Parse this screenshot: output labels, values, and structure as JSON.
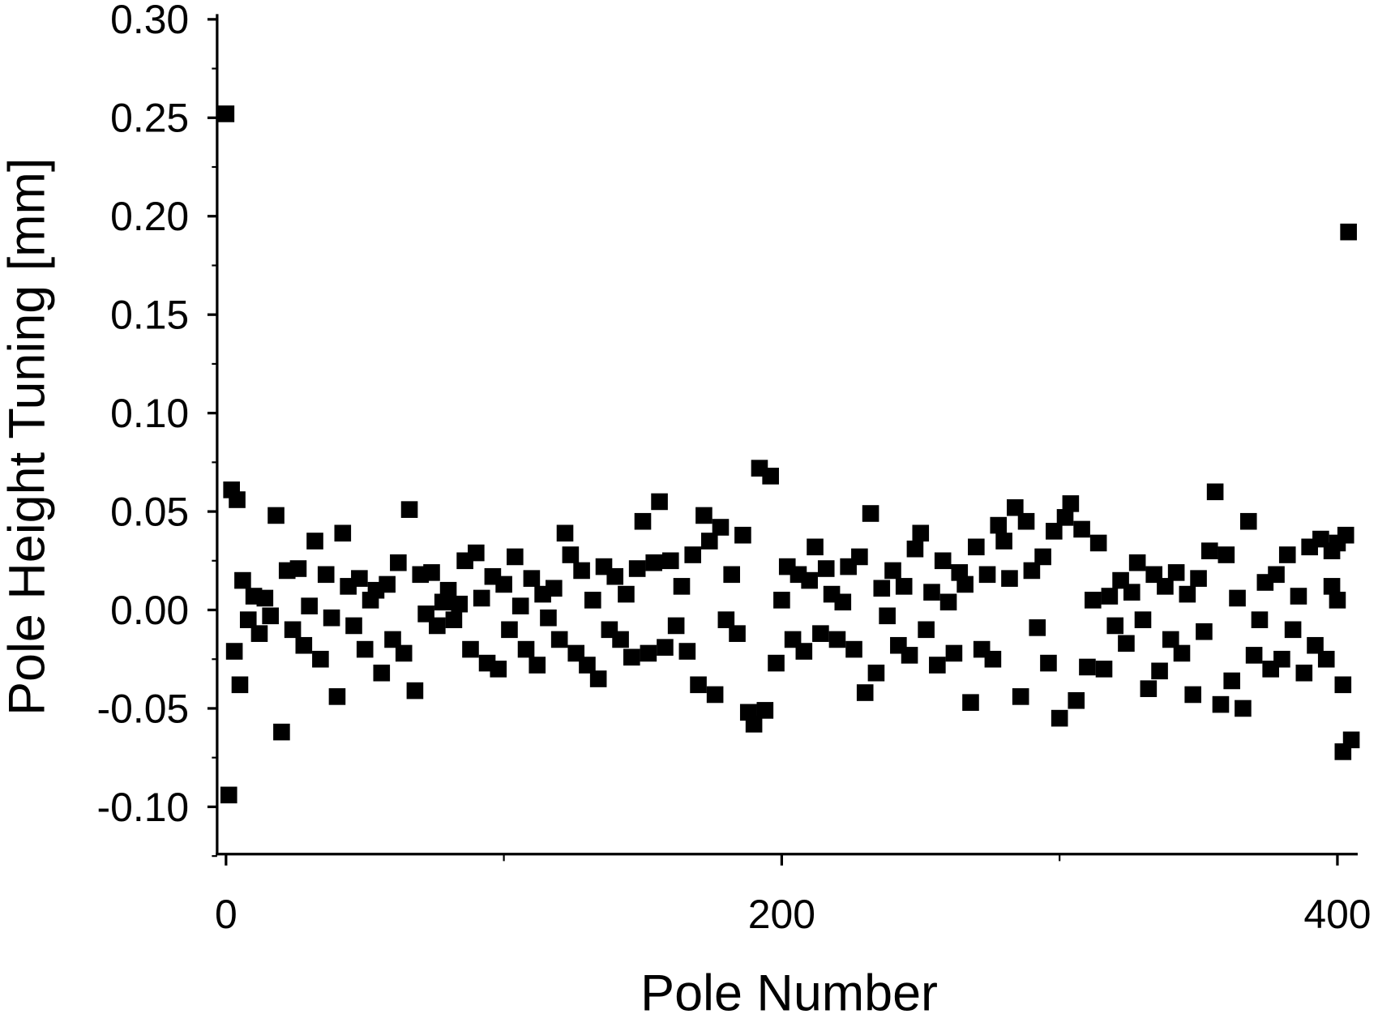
{
  "chart_data": {
    "type": "scatter",
    "xlabel": "Pole Number",
    "ylabel": "Pole Height Tuning [mm]",
    "xlim": [
      -3.2,
      407.3
    ],
    "ylim": [
      -0.124,
      0.302
    ],
    "xticks": [
      0,
      200,
      400
    ],
    "xminorticks": [
      100,
      300
    ],
    "yticks": [
      {
        "value": -0.1,
        "label": "-0.10"
      },
      -0.05,
      {
        "value": 0,
        "label": "0.00"
      },
      0.05,
      {
        "value": 0.1,
        "label": "0.10"
      },
      0.15,
      {
        "value": 0.2,
        "label": "0.20"
      },
      0.25,
      {
        "value": 0.3,
        "label": "0.30"
      }
    ],
    "yminorticks": [
      -0.125,
      -0.075,
      -0.025,
      0.025,
      0.075,
      0.125,
      0.175,
      0.225,
      0.275
    ],
    "color": "#000000",
    "x": [
      0,
      1,
      2,
      3,
      4,
      5,
      6,
      8,
      10,
      12,
      14,
      16,
      18,
      20,
      22,
      24,
      26,
      28,
      30,
      32,
      34,
      36,
      38,
      40,
      42,
      44,
      46,
      48,
      50,
      52,
      54,
      56,
      58,
      60,
      62,
      64,
      66,
      68,
      70,
      72,
      74,
      76,
      78,
      80,
      82,
      84,
      86,
      88,
      90,
      92,
      94,
      96,
      98,
      100,
      102,
      104,
      106,
      108,
      110,
      112,
      114,
      116,
      118,
      120,
      122,
      124,
      126,
      128,
      130,
      132,
      134,
      136,
      138,
      140,
      142,
      144,
      146,
      148,
      150,
      152,
      154,
      156,
      158,
      160,
      162,
      164,
      166,
      168,
      170,
      172,
      174,
      176,
      178,
      180,
      182,
      184,
      186,
      188,
      190,
      192,
      194,
      196,
      198,
      200,
      202,
      204,
      206,
      208,
      210,
      212,
      214,
      216,
      218,
      220,
      222,
      224,
      226,
      228,
      230,
      232,
      234,
      236,
      238,
      240,
      242,
      244,
      246,
      248,
      250,
      252,
      254,
      256,
      258,
      260,
      262,
      264,
      266,
      268,
      270,
      272,
      274,
      276,
      278,
      280,
      282,
      284,
      286,
      288,
      290,
      292,
      294,
      296,
      298,
      300,
      302,
      304,
      306,
      308,
      310,
      312,
      314,
      316,
      318,
      320,
      322,
      324,
      326,
      328,
      330,
      332,
      334,
      336,
      338,
      340,
      342,
      344,
      346,
      348,
      350,
      352,
      354,
      356,
      358,
      360,
      362,
      364,
      366,
      368,
      370,
      372,
      374,
      376,
      378,
      380,
      382,
      384,
      386,
      388,
      390,
      392,
      394,
      396,
      398,
      400,
      402,
      404,
      400,
      398,
      402,
      403,
      405
    ],
    "values": [
      0.252,
      -0.094,
      0.061,
      -0.021,
      0.056,
      -0.038,
      0.015,
      -0.005,
      0.007,
      -0.012,
      0.006,
      -0.003,
      0.048,
      -0.062,
      0.02,
      -0.01,
      0.021,
      -0.018,
      0.002,
      0.035,
      -0.025,
      0.018,
      -0.004,
      -0.044,
      0.039,
      0.012,
      -0.008,
      0.016,
      -0.02,
      0.005,
      0.01,
      -0.032,
      0.013,
      -0.015,
      0.024,
      -0.022,
      0.051,
      -0.041,
      0.018,
      -0.002,
      0.019,
      -0.008,
      0.004,
      0.01,
      -0.005,
      0.003,
      0.025,
      -0.02,
      0.029,
      0.006,
      -0.027,
      0.017,
      -0.03,
      0.013,
      -0.01,
      0.027,
      0.002,
      -0.02,
      0.016,
      -0.028,
      0.008,
      -0.004,
      0.011,
      -0.015,
      0.039,
      0.028,
      -0.022,
      0.02,
      -0.028,
      0.005,
      -0.035,
      0.022,
      -0.01,
      0.017,
      -0.015,
      0.008,
      -0.024,
      0.021,
      0.045,
      -0.022,
      0.024,
      0.055,
      -0.019,
      0.025,
      -0.008,
      0.012,
      -0.021,
      0.028,
      -0.038,
      0.048,
      0.035,
      -0.043,
      0.042,
      -0.005,
      0.018,
      -0.012,
      0.038,
      -0.052,
      -0.058,
      0.072,
      -0.051,
      0.068,
      -0.027,
      0.005,
      0.022,
      -0.015,
      0.018,
      -0.021,
      0.015,
      0.032,
      -0.012,
      0.021,
      0.008,
      -0.015,
      0.004,
      0.022,
      -0.02,
      0.027,
      -0.042,
      0.049,
      -0.032,
      0.011,
      -0.003,
      0.02,
      -0.018,
      0.012,
      -0.023,
      0.031,
      0.039,
      -0.01,
      0.009,
      -0.028,
      0.025,
      0.004,
      -0.022,
      0.019,
      0.013,
      -0.047,
      0.032,
      -0.02,
      0.018,
      -0.025,
      0.043,
      0.035,
      0.016,
      0.052,
      -0.044,
      0.045,
      0.02,
      -0.009,
      0.027,
      -0.027,
      0.04,
      -0.055,
      0.047,
      0.054,
      -0.046,
      0.041,
      -0.029,
      0.005,
      0.034,
      -0.03,
      0.007,
      -0.008,
      0.015,
      -0.017,
      0.009,
      0.024,
      -0.005,
      -0.04,
      0.018,
      -0.031,
      0.012,
      -0.015,
      0.019,
      -0.022,
      0.008,
      -0.043,
      0.016,
      -0.011,
      0.03,
      0.06,
      -0.048,
      0.028,
      -0.036,
      0.006,
      -0.05,
      0.045,
      -0.023,
      -0.005,
      0.014,
      -0.03,
      0.018,
      -0.025,
      0.028,
      -0.01,
      0.007,
      -0.032,
      0.032,
      -0.018,
      0.036,
      -0.025,
      0.012,
      0.034,
      -0.038,
      0.192,
      0.005,
      0.03,
      -0.072,
      0.038,
      -0.066
    ]
  }
}
